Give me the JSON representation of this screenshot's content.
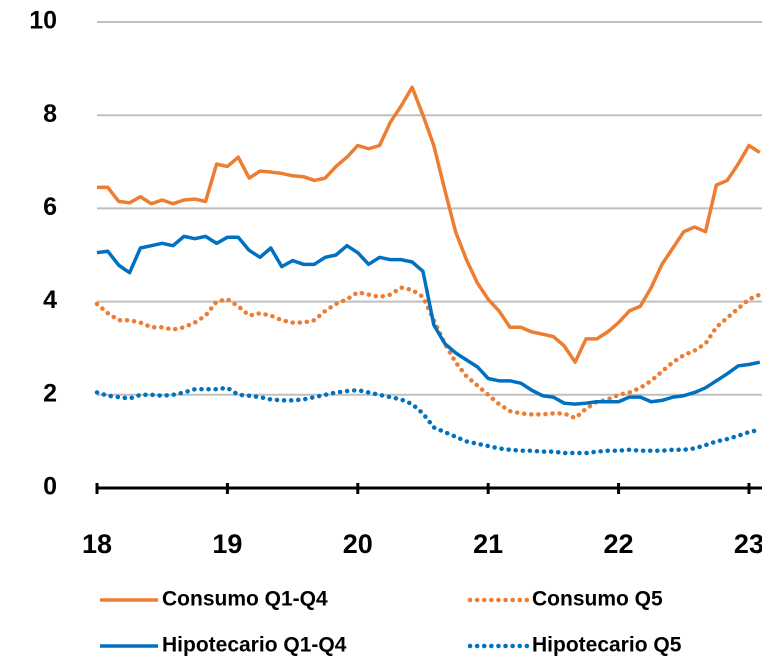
{
  "chart_data": {
    "type": "line",
    "x": [
      18,
      18.083,
      18.167,
      18.25,
      18.333,
      18.417,
      18.5,
      18.583,
      18.667,
      18.75,
      18.833,
      18.917,
      19,
      19.083,
      19.167,
      19.25,
      19.333,
      19.417,
      19.5,
      19.583,
      19.667,
      19.75,
      19.833,
      19.917,
      20,
      20.083,
      20.167,
      20.25,
      20.333,
      20.417,
      20.5,
      20.583,
      20.667,
      20.75,
      20.833,
      20.917,
      21,
      21.083,
      21.167,
      21.25,
      21.333,
      21.417,
      21.5,
      21.583,
      21.667,
      21.75,
      21.833,
      21.917,
      22,
      22.083,
      22.167,
      22.25,
      22.333,
      22.417,
      22.5,
      22.583,
      22.667,
      22.75,
      22.833,
      22.917,
      23,
      23.083
    ],
    "series": [
      {
        "name": "Consumo Q1-Q4",
        "color": "#ed7d31",
        "style": "solid",
        "values": [
          6.45,
          6.45,
          6.15,
          6.12,
          6.25,
          6.1,
          6.18,
          6.1,
          6.18,
          6.2,
          6.15,
          6.95,
          6.9,
          7.1,
          6.65,
          6.8,
          6.78,
          6.75,
          6.7,
          6.68,
          6.6,
          6.65,
          6.9,
          7.1,
          7.35,
          7.28,
          7.35,
          7.85,
          8.2,
          8.6,
          8.0,
          7.35,
          6.4,
          5.5,
          4.9,
          4.4,
          4.05,
          3.8,
          3.45,
          3.45,
          3.35,
          3.3,
          3.25,
          3.05,
          2.7,
          3.2,
          3.2,
          3.35,
          3.55,
          3.8,
          3.9,
          4.3,
          4.8,
          5.15,
          5.5,
          5.6,
          5.5,
          6.5,
          6.6,
          6.95,
          7.35,
          7.2
        ]
      },
      {
        "name": "Consumo Q5",
        "color": "#ed7d31",
        "style": "dotted",
        "values": [
          3.95,
          3.75,
          3.6,
          3.6,
          3.55,
          3.45,
          3.45,
          3.4,
          3.45,
          3.55,
          3.7,
          4.0,
          4.05,
          3.9,
          3.7,
          3.75,
          3.7,
          3.6,
          3.55,
          3.55,
          3.6,
          3.8,
          3.95,
          4.05,
          4.2,
          4.15,
          4.1,
          4.15,
          4.3,
          4.25,
          4.1,
          3.6,
          3.1,
          2.7,
          2.4,
          2.2,
          2.0,
          1.8,
          1.65,
          1.6,
          1.58,
          1.58,
          1.6,
          1.6,
          1.5,
          1.7,
          1.85,
          1.9,
          2.0,
          2.05,
          2.15,
          2.3,
          2.5,
          2.7,
          2.85,
          2.95,
          3.1,
          3.45,
          3.65,
          3.85,
          4.05,
          4.15
        ]
      },
      {
        "name": "Hipotecario Q1-Q4",
        "color": "#0070c0",
        "style": "solid",
        "values": [
          5.05,
          5.08,
          4.78,
          4.62,
          5.15,
          5.2,
          5.25,
          5.2,
          5.4,
          5.35,
          5.4,
          5.25,
          5.38,
          5.38,
          5.1,
          4.95,
          5.15,
          4.75,
          4.88,
          4.8,
          4.8,
          4.95,
          5.0,
          5.2,
          5.05,
          4.8,
          4.95,
          4.9,
          4.9,
          4.85,
          4.65,
          3.5,
          3.1,
          2.9,
          2.75,
          2.6,
          2.35,
          2.3,
          2.3,
          2.25,
          2.1,
          1.98,
          1.95,
          1.82,
          1.8,
          1.82,
          1.85,
          1.85,
          1.85,
          1.95,
          1.95,
          1.85,
          1.88,
          1.95,
          1.98,
          2.05,
          2.15,
          2.3,
          2.45,
          2.62,
          2.65,
          2.7
        ]
      },
      {
        "name": "Hipotecario Q5",
        "color": "#0070c0",
        "style": "dotted",
        "values": [
          2.05,
          1.98,
          1.95,
          1.92,
          2.0,
          2.0,
          1.98,
          2.0,
          2.05,
          2.12,
          2.12,
          2.12,
          2.15,
          2.0,
          1.98,
          1.95,
          1.9,
          1.88,
          1.88,
          1.9,
          1.95,
          2.0,
          2.05,
          2.08,
          2.1,
          2.05,
          2.0,
          1.95,
          1.9,
          1.8,
          1.6,
          1.3,
          1.2,
          1.1,
          1.0,
          0.95,
          0.9,
          0.85,
          0.82,
          0.8,
          0.8,
          0.78,
          0.78,
          0.75,
          0.75,
          0.75,
          0.78,
          0.8,
          0.8,
          0.82,
          0.8,
          0.8,
          0.8,
          0.82,
          0.82,
          0.85,
          0.92,
          1.0,
          1.05,
          1.12,
          1.2,
          1.25
        ]
      }
    ],
    "xlim": [
      18,
      23.1
    ],
    "xticks": [
      18,
      19,
      20,
      21,
      22,
      23
    ],
    "ylim": [
      0,
      10
    ],
    "yticks": [
      0,
      2,
      4,
      6,
      8,
      10
    ],
    "grid": true,
    "legend": "bottom"
  }
}
